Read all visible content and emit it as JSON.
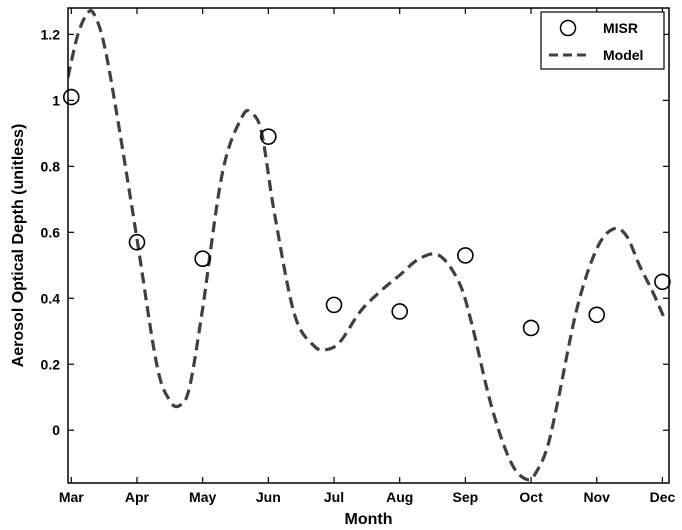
{
  "chart_data": {
    "type": "line",
    "title": "",
    "xlabel": "Month",
    "ylabel": "Aerosol Optical Depth (unitless)",
    "categories": [
      "Mar",
      "Apr",
      "May",
      "Jun",
      "Jul",
      "Aug",
      "Sep",
      "Oct",
      "Nov",
      "Dec"
    ],
    "xlim": [
      -0.05,
      9.1
    ],
    "ylim": [
      -0.16,
      1.28
    ],
    "yticks": [
      0,
      0.2,
      0.4,
      0.6,
      0.8,
      1,
      1.2
    ],
    "ytick_labels": [
      "0",
      "0.2",
      "0.4",
      "0.6",
      "0.8",
      "1",
      "1.2"
    ],
    "grid": false,
    "legend_position": "top-right",
    "colors": {
      "misr": "#000000",
      "model": "#404040"
    },
    "series": [
      {
        "name": "MISR",
        "style": "open-circle-markers",
        "x": [
          0,
          1,
          2,
          3,
          4,
          5,
          6,
          7,
          8,
          9
        ],
        "values": [
          1.01,
          0.57,
          0.52,
          0.89,
          0.38,
          0.36,
          0.53,
          0.31,
          0.35,
          0.45
        ]
      },
      {
        "name": "Model",
        "style": "dashed-line",
        "x": [
          -0.05,
          0.1,
          0.25,
          0.35,
          0.5,
          0.7,
          1.0,
          1.3,
          1.5,
          1.65,
          1.8,
          2.0,
          2.3,
          2.6,
          2.75,
          2.9,
          3.1,
          3.4,
          3.7,
          3.9,
          4.1,
          4.4,
          4.7,
          5.0,
          5.3,
          5.6,
          5.9,
          6.1,
          6.4,
          6.7,
          6.95,
          7.1,
          7.25,
          7.4,
          7.7,
          8.0,
          8.25,
          8.45,
          8.65,
          8.85,
          9.05
        ],
        "values": [
          1.07,
          1.2,
          1.265,
          1.26,
          1.17,
          0.95,
          0.58,
          0.2,
          0.09,
          0.075,
          0.13,
          0.37,
          0.78,
          0.95,
          0.96,
          0.9,
          0.65,
          0.35,
          0.255,
          0.245,
          0.27,
          0.36,
          0.42,
          0.47,
          0.52,
          0.53,
          0.45,
          0.32,
          0.07,
          -0.1,
          -0.15,
          -0.12,
          -0.05,
          0.08,
          0.37,
          0.55,
          0.61,
          0.59,
          0.5,
          0.42,
          0.33
        ]
      }
    ]
  }
}
